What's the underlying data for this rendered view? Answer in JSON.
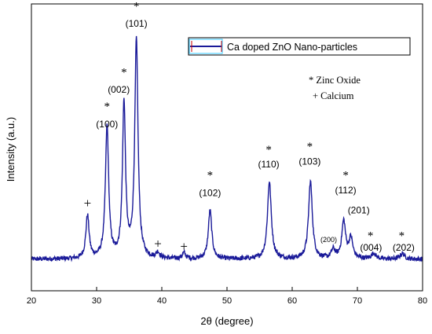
{
  "chart_data": {
    "type": "line",
    "xlabel": "2θ (degree)",
    "ylabel": "Intensity (a.u.)",
    "xlim": [
      20,
      80
    ],
    "ylim": [
      0,
      100
    ],
    "x_ticks": [
      "20",
      "30",
      "40",
      "50",
      "60",
      "70",
      "80"
    ],
    "y_ticks_shown": false,
    "grid": false,
    "legend": {
      "placement": "top-right",
      "entries": [
        "Ca doped ZnO Nano-particles"
      ]
    },
    "notes": [
      "* Zinc Oxide",
      "+ Calcium"
    ],
    "series": [
      {
        "name": "Ca doped ZnO Nano-particles",
        "color": "#1a1a99",
        "baseline": 11,
        "peaks": [
          {
            "x": 28.6,
            "height": 15,
            "width": 0.3
          },
          {
            "x": 31.6,
            "height": 46,
            "width": 0.3
          },
          {
            "x": 34.2,
            "height": 54,
            "width": 0.28
          },
          {
            "x": 36.1,
            "height": 76,
            "width": 0.3
          },
          {
            "x": 39.4,
            "height": 2,
            "width": 0.3
          },
          {
            "x": 43.4,
            "height": 2,
            "width": 0.3
          },
          {
            "x": 47.4,
            "height": 17,
            "width": 0.32
          },
          {
            "x": 56.5,
            "height": 27,
            "width": 0.35
          },
          {
            "x": 62.8,
            "height": 27,
            "width": 0.35
          },
          {
            "x": 66.3,
            "height": 3,
            "width": 0.35
          },
          {
            "x": 67.9,
            "height": 13,
            "width": 0.35
          },
          {
            "x": 69.0,
            "height": 7,
            "width": 0.35
          },
          {
            "x": 72.5,
            "height": 2,
            "width": 0.4
          },
          {
            "x": 76.9,
            "height": 2,
            "width": 0.4
          }
        ]
      }
    ],
    "annotations": [
      {
        "x": 28.6,
        "y": 29,
        "text": "+",
        "kind": "marker"
      },
      {
        "x": 31.6,
        "y": 63,
        "text": "*",
        "kind": "marker"
      },
      {
        "x": 31.6,
        "y": 57,
        "text": "(100)",
        "kind": "label"
      },
      {
        "x": 34.2,
        "y": 75,
        "text": "*",
        "kind": "marker"
      },
      {
        "x": 33.4,
        "y": 69,
        "text": "(002)",
        "kind": "label"
      },
      {
        "x": 36.1,
        "y": 98,
        "text": "*",
        "kind": "marker"
      },
      {
        "x": 36.1,
        "y": 92,
        "text": "(101)",
        "kind": "label"
      },
      {
        "x": 39.4,
        "y": 15,
        "text": "+",
        "kind": "marker"
      },
      {
        "x": 43.4,
        "y": 14,
        "text": "+",
        "kind": "marker"
      },
      {
        "x": 47.4,
        "y": 39,
        "text": "*",
        "kind": "marker"
      },
      {
        "x": 47.4,
        "y": 33,
        "text": "(102)",
        "kind": "label"
      },
      {
        "x": 56.4,
        "y": 48,
        "text": "*",
        "kind": "marker"
      },
      {
        "x": 56.4,
        "y": 43,
        "text": "(110)",
        "kind": "label"
      },
      {
        "x": 62.7,
        "y": 49,
        "text": "*",
        "kind": "marker"
      },
      {
        "x": 62.7,
        "y": 44,
        "text": "(103)",
        "kind": "label"
      },
      {
        "x": 68.2,
        "y": 39,
        "text": "*",
        "kind": "marker"
      },
      {
        "x": 68.2,
        "y": 34,
        "text": "(112)",
        "kind": "label"
      },
      {
        "x": 70.2,
        "y": 27,
        "text": "(201)",
        "kind": "label"
      },
      {
        "x": 65.6,
        "y": 17,
        "text": "(200)",
        "kind": "label-small"
      },
      {
        "x": 72.0,
        "y": 18,
        "text": "*",
        "kind": "marker"
      },
      {
        "x": 72.1,
        "y": 14,
        "text": "(004)",
        "kind": "label"
      },
      {
        "x": 76.8,
        "y": 18,
        "text": "*",
        "kind": "marker"
      },
      {
        "x": 77.1,
        "y": 14,
        "text": "(202)",
        "kind": "label"
      }
    ]
  }
}
